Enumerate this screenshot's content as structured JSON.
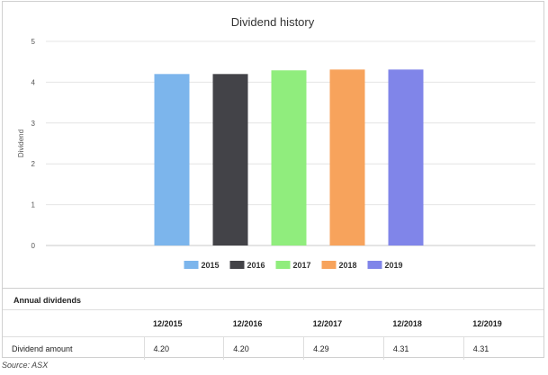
{
  "chart_data": {
    "type": "bar",
    "title": "Dividend history",
    "ylabel": "Dividend",
    "xlabel": "",
    "ylim": [
      0,
      5
    ],
    "yticks": [
      0,
      1,
      2,
      3,
      4,
      5
    ],
    "grid": true,
    "legend_position": "bottom",
    "categories": [
      "2015",
      "2016",
      "2017",
      "2018",
      "2019"
    ],
    "values": [
      4.2,
      4.2,
      4.29,
      4.31,
      4.31
    ],
    "colors": [
      "#7cb5ec",
      "#434348",
      "#90ed7d",
      "#f7a35c",
      "#8085e9"
    ]
  },
  "table": {
    "title": "Annual dividends",
    "headers": [
      "",
      "12/2015",
      "12/2016",
      "12/2017",
      "12/2018",
      "12/2019"
    ],
    "row": {
      "label": "Dividend amount",
      "values": [
        "4.20",
        "4.20",
        "4.29",
        "4.31",
        "4.31"
      ]
    }
  },
  "source": "Source: ASX"
}
